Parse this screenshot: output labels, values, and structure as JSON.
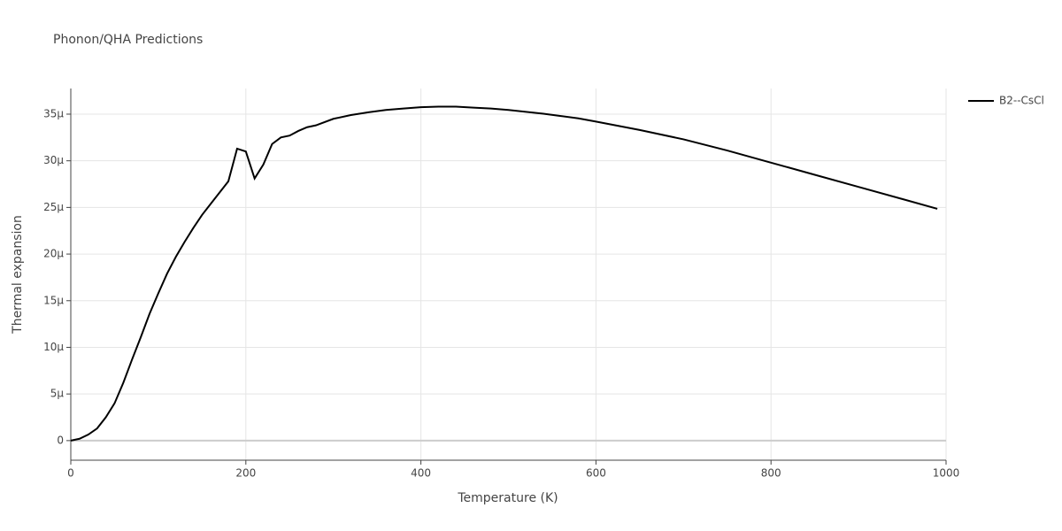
{
  "chart_data": {
    "type": "line",
    "title": "Phonon/QHA Predictions",
    "x_label": "Temperature (K)",
    "y_label": "Thermal expansion",
    "x": [
      0,
      10,
      20,
      30,
      40,
      50,
      60,
      70,
      80,
      90,
      100,
      110,
      120,
      130,
      140,
      150,
      160,
      170,
      180,
      190,
      200,
      210,
      220,
      230,
      240,
      250,
      260,
      270,
      280,
      300,
      320,
      340,
      360,
      380,
      400,
      420,
      440,
      460,
      480,
      500,
      520,
      540,
      560,
      580,
      600,
      650,
      700,
      750,
      800,
      850,
      900,
      950,
      990
    ],
    "series": [
      {
        "name": "B2--CsCl",
        "color": "#000000",
        "values": [
          0,
          2e-07,
          6.5e-07,
          1.3e-06,
          2.5e-06,
          4e-06,
          6.2e-06,
          8.7e-06,
          1.11e-05,
          1.36e-05,
          1.58e-05,
          1.79e-05,
          1.97e-05,
          2.13e-05,
          2.28e-05,
          2.42e-05,
          2.54e-05,
          2.66e-05,
          2.78e-05,
          3.13e-05,
          3.1e-05,
          2.81e-05,
          2.96e-05,
          3.18e-05,
          3.25e-05,
          3.27e-05,
          3.32e-05,
          3.36e-05,
          3.38e-05,
          3.45e-05,
          3.49e-05,
          3.52e-05,
          3.545e-05,
          3.56e-05,
          3.575e-05,
          3.58e-05,
          3.58e-05,
          3.57e-05,
          3.56e-05,
          3.545e-05,
          3.525e-05,
          3.505e-05,
          3.48e-05,
          3.455e-05,
          3.42e-05,
          3.33e-05,
          3.23e-05,
          3.11e-05,
          2.98e-05,
          2.85e-05,
          2.72e-05,
          2.59e-05,
          2.485e-05
        ]
      }
    ],
    "xlim": [
      0,
      1000
    ],
    "xticks": [
      0,
      200,
      400,
      600,
      800,
      1000
    ],
    "ylim": [
      -2.1e-06,
      3.775e-05
    ],
    "yticks": [
      0,
      {
        "value": 5e-06,
        "label": "5μ"
      },
      {
        "value": 1e-05,
        "label": "10μ"
      },
      {
        "value": 1.5e-05,
        "label": "15μ"
      },
      {
        "value": 2e-05,
        "label": "20μ"
      },
      {
        "value": 2.5e-05,
        "label": "25μ"
      },
      {
        "value": 3e-05,
        "label": "30μ"
      },
      {
        "value": 3.5e-05,
        "label": "35μ"
      }
    ],
    "grid": true,
    "legend": "top-right"
  }
}
